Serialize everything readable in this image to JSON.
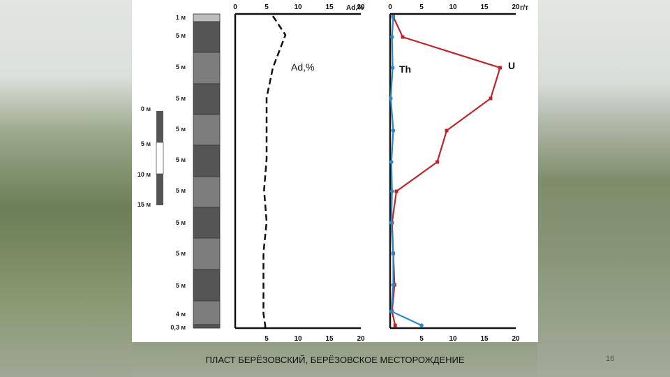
{
  "slide": {
    "caption": "ПЛАСТ БЕРЁЗОВСКИЙ, БЕРЁЗОВСКОЕ МЕСТОРОЖДЕНИЕ",
    "page_number": "16"
  },
  "column": {
    "layers": [
      {
        "label": "1 м",
        "shade": "#bdbdbd"
      },
      {
        "label": "5 м",
        "shade": "#555555"
      },
      {
        "label": "5 м",
        "shade": "#7d7d7d"
      },
      {
        "label": "5 м",
        "shade": "#555555"
      },
      {
        "label": "5 м",
        "shade": "#7d7d7d"
      },
      {
        "label": "5 м",
        "shade": "#555555"
      },
      {
        "label": "5 м",
        "shade": "#7d7d7d"
      },
      {
        "label": "5 м",
        "shade": "#555555"
      },
      {
        "label": "5 м",
        "shade": "#7d7d7d"
      },
      {
        "label": "5 м",
        "shade": "#555555"
      },
      {
        "label": "4 м",
        "shade": "#7d7d7d"
      },
      {
        "label": "0,3 м",
        "shade": "#555555"
      }
    ],
    "scale_labels": [
      "0 м",
      "5 м",
      "10 м",
      "15 м"
    ]
  },
  "chart_data": [
    {
      "type": "line",
      "x_ticks": [
        "0",
        "5",
        "10",
        "15",
        "20"
      ],
      "x_range": [
        0,
        20
      ],
      "series": [
        {
          "name": "Ad,%",
          "color": "#111111",
          "dashed": true,
          "x": [
            6,
            8,
            6,
            5,
            5,
            5,
            4.6,
            5,
            4.5,
            4.5,
            4.5,
            4.8,
            4.5
          ]
        }
      ],
      "axis_unit": "Ad,%"
    },
    {
      "type": "line",
      "x_ticks": [
        "0",
        "5",
        "10",
        "15",
        "20"
      ],
      "x_range": [
        0,
        20
      ],
      "axis_unit": "г/т",
      "series": [
        {
          "name": "U",
          "color": "#c0242a",
          "x": [
            0.5,
            2,
            17.5,
            16,
            9,
            7.5,
            1,
            0.3,
            0.5,
            0.7,
            0.3,
            0.8
          ]
        },
        {
          "name": "Th",
          "color": "#2a8ac4",
          "x": [
            0.5,
            0.3,
            0.4,
            0.1,
            0.5,
            0.2,
            0.3,
            0.2,
            0.5,
            0.5,
            0.2,
            5
          ]
        }
      ]
    }
  ]
}
